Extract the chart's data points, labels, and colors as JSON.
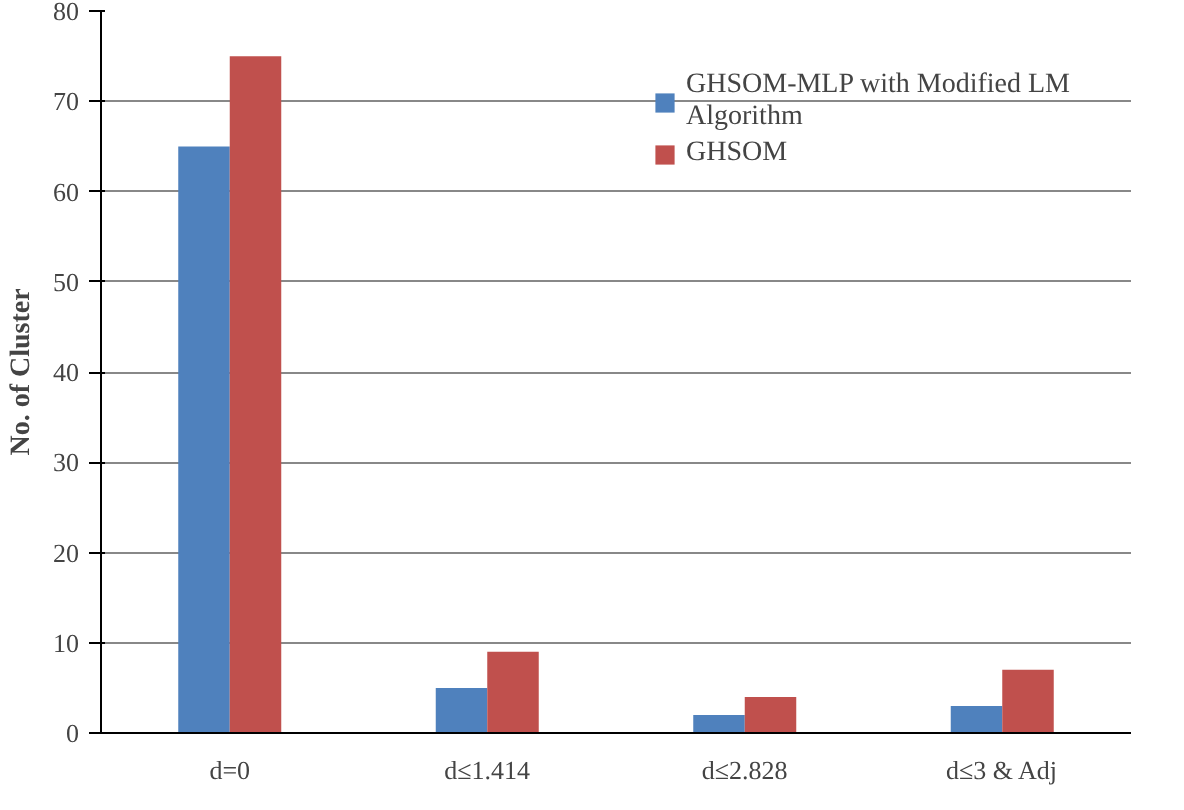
{
  "chart_data": {
    "type": "bar",
    "ylabel": "No. of Cluster",
    "categories": [
      "d=0",
      "d≤1.414",
      "d≤2.828",
      "d≤3 & Adj"
    ],
    "series": [
      {
        "name": "GHSOM-MLP with Modified LM Algorithm",
        "color": "#4f81bd",
        "values": [
          65,
          5,
          2,
          3
        ]
      },
      {
        "name": "GHSOM",
        "color": "#c0504d",
        "values": [
          75,
          9,
          4,
          7
        ]
      }
    ],
    "ylim": [
      0,
      80
    ],
    "yticks": [
      0,
      10,
      20,
      30,
      40,
      50,
      60,
      70,
      80
    ],
    "grid": "y",
    "legend": "top right"
  }
}
